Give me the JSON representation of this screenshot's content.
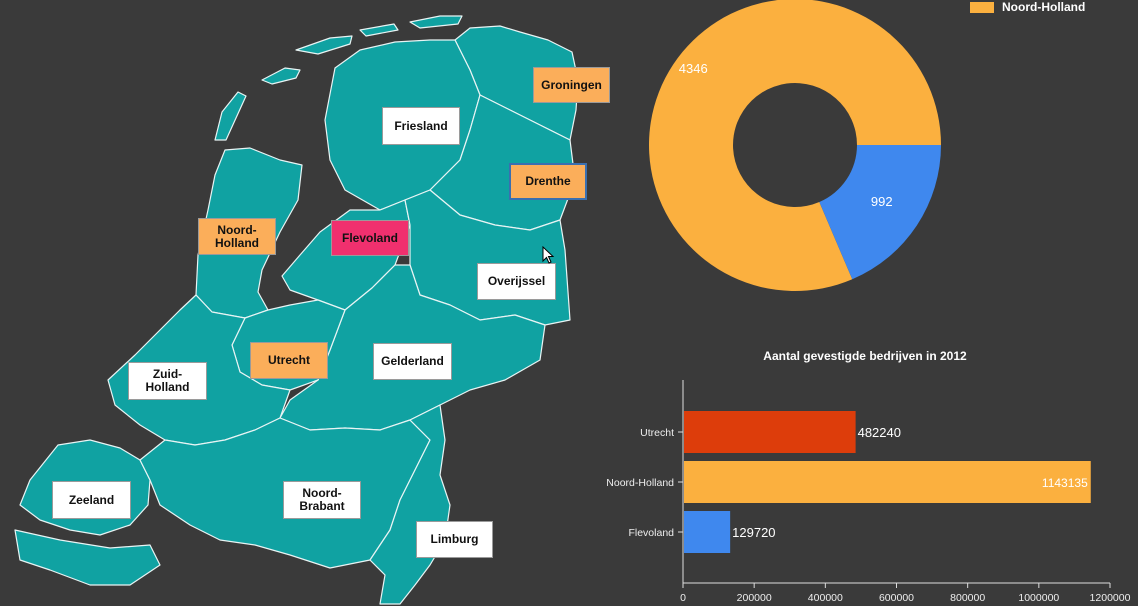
{
  "provinces": [
    {
      "id": "groningen",
      "name": "Groningen",
      "state": "selected"
    },
    {
      "id": "friesland",
      "name": "Friesland",
      "state": "normal"
    },
    {
      "id": "drenthe",
      "name": "Drenthe",
      "state": "selected"
    },
    {
      "id": "noord-holland",
      "name": "Noord-\nHolland",
      "state": "selected"
    },
    {
      "id": "flevoland",
      "name": "Flevoland",
      "state": "highlighted"
    },
    {
      "id": "overijssel",
      "name": "Overijssel",
      "state": "normal"
    },
    {
      "id": "utrecht",
      "name": "Utrecht",
      "state": "selected"
    },
    {
      "id": "gelderland",
      "name": "Gelderland",
      "state": "normal"
    },
    {
      "id": "zuid-holland",
      "name": "Zuid-\nHolland",
      "state": "normal"
    },
    {
      "id": "zeeland",
      "name": "Zeeland",
      "state": "normal"
    },
    {
      "id": "noord-brabant",
      "name": "Noord-\nBrabant",
      "state": "normal"
    },
    {
      "id": "limburg",
      "name": "Limburg",
      "state": "normal"
    }
  ],
  "colors": {
    "map": "#10a2a2",
    "selected": "#fbae5a",
    "highlighted": "#f0306e",
    "background": "#3a3a3a"
  },
  "chart_data": [
    {
      "type": "pie",
      "subtype": "donut",
      "legend": {
        "position": "top-right",
        "entries": [
          {
            "label": "Noord-Holland",
            "color": "#fbb03f"
          }
        ]
      },
      "slices": [
        {
          "value": 4346,
          "label": "4346",
          "color": "#fbb03f"
        },
        {
          "value": 992,
          "label": "992",
          "color": "#3f88ee"
        }
      ]
    },
    {
      "type": "bar",
      "orientation": "horizontal",
      "title": "Aantal gevestigde bedrijven in 2012",
      "categories": [
        "Utrecht",
        "Noord-Holland",
        "Flevoland"
      ],
      "values": [
        482240,
        1143135,
        129720
      ],
      "colors": [
        "#dd3d0b",
        "#fbb03f",
        "#3f88ee"
      ],
      "xlim": [
        0,
        1200000
      ],
      "xticks": [
        0,
        200000,
        400000,
        600000,
        800000,
        1000000,
        1200000
      ],
      "grid": false
    }
  ]
}
